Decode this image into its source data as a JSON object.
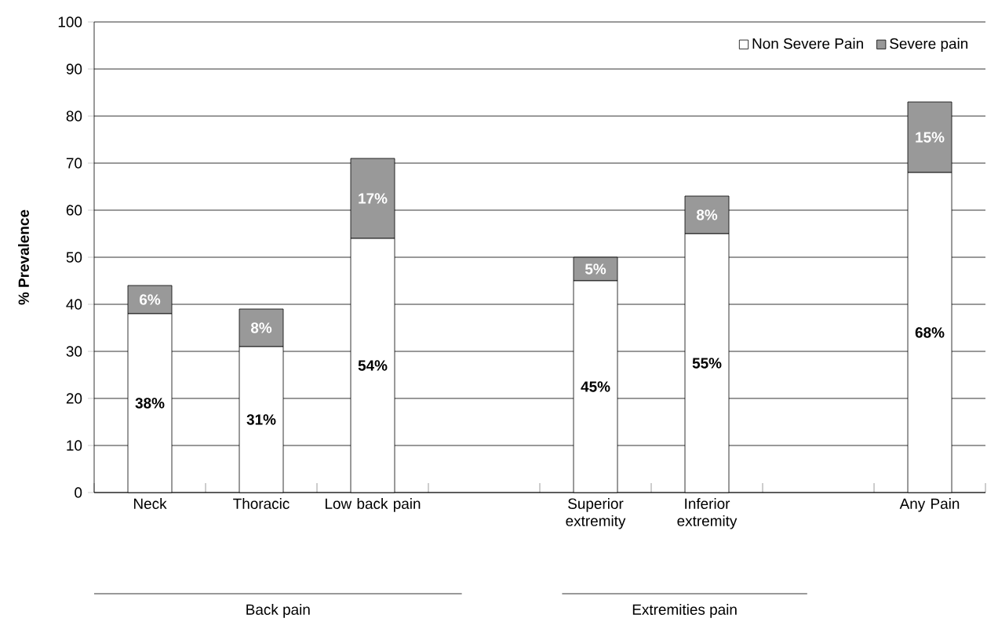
{
  "chart_data": {
    "type": "bar",
    "stacked": true,
    "ylabel": "% Prevalence",
    "categories": [
      "Neck",
      "Thoracic",
      "Low back pain",
      null,
      "Superior extremity",
      "Inferior extremity",
      null,
      "Any Pain"
    ],
    "series": [
      {
        "name": "Non Severe Pain",
        "color": "#ffffff",
        "values": [
          38,
          31,
          54,
          null,
          45,
          55,
          null,
          68
        ],
        "value_labels": [
          "38%",
          "31%",
          "54%",
          null,
          "45%",
          "55%",
          null,
          "68%"
        ]
      },
      {
        "name": "Severe pain",
        "color": "#999999",
        "values": [
          6,
          8,
          17,
          null,
          5,
          8,
          null,
          15
        ],
        "value_labels": [
          "6%",
          "8%",
          "17%",
          null,
          "5%",
          "8%",
          null,
          "15%"
        ]
      }
    ],
    "ylim": [
      0,
      100
    ],
    "yticks": [
      0,
      10,
      20,
      30,
      40,
      50,
      60,
      70,
      80,
      90,
      100
    ],
    "grid": "y",
    "legend": "top right",
    "annotations": [
      "Back pain",
      "Extremities pain"
    ]
  }
}
